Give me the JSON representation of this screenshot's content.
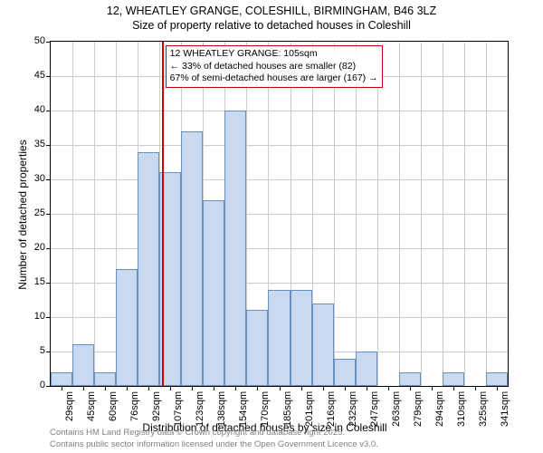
{
  "title_line1": "12, WHEATLEY GRANGE, COLESHILL, BIRMINGHAM, B46 3LZ",
  "title_line2": "Size of property relative to detached houses in Coleshill",
  "chart": {
    "type": "histogram",
    "ylabel": "Number of detached properties",
    "xlabel": "Distribution of detached houses by size in Coleshill",
    "ylim_max": 50,
    "ytick_step": 5,
    "bar_fill": "#c9daf0",
    "bar_stroke": "#6a8fbf",
    "grid_color": "#cccccc",
    "background": "#ffffff",
    "categories": [
      "29sqm",
      "45sqm",
      "60sqm",
      "76sqm",
      "92sqm",
      "107sqm",
      "123sqm",
      "138sqm",
      "154sqm",
      "170sqm",
      "185sqm",
      "201sqm",
      "216sqm",
      "232sqm",
      "247sqm",
      "263sqm",
      "279sqm",
      "294sqm",
      "310sqm",
      "325sqm",
      "341sqm"
    ],
    "values": [
      2,
      6,
      2,
      17,
      34,
      31,
      37,
      27,
      40,
      11,
      14,
      14,
      12,
      4,
      5,
      0,
      2,
      0,
      2,
      0,
      2
    ],
    "refline": {
      "color": "#cc0000",
      "index_position": 5.1
    },
    "annotation": {
      "line1": "12 WHEATLEY GRANGE: 105sqm",
      "line2": "← 33% of detached houses are smaller (82)",
      "line3": "67% of semi-detached houses are larger (167) →",
      "border_color": "#cc0000"
    }
  },
  "footer_line1": "Contains HM Land Registry data © Crown copyright and database right 2025.",
  "footer_line2": "Contains public sector information licensed under the Open Government Licence v3.0."
}
